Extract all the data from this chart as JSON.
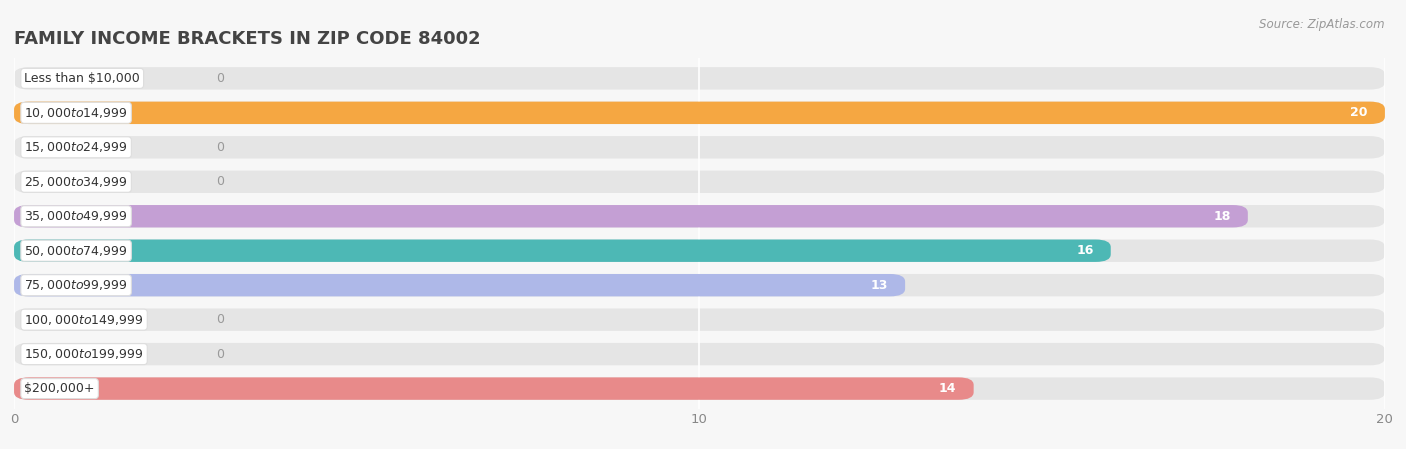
{
  "title": "FAMILY INCOME BRACKETS IN ZIP CODE 84002",
  "source_text": "Source: ZipAtlas.com",
  "categories": [
    "Less than $10,000",
    "$10,000 to $14,999",
    "$15,000 to $24,999",
    "$25,000 to $34,999",
    "$35,000 to $49,999",
    "$50,000 to $74,999",
    "$75,000 to $99,999",
    "$100,000 to $149,999",
    "$150,000 to $199,999",
    "$200,000+"
  ],
  "values": [
    0,
    20,
    0,
    0,
    18,
    16,
    13,
    0,
    0,
    14
  ],
  "bar_colors": [
    "#f7a8ba",
    "#f5a742",
    "#f7a8ba",
    "#adc6ea",
    "#c49fd4",
    "#4db8b5",
    "#aeb8e8",
    "#f7a8ba",
    "#f5c88a",
    "#e88a8a"
  ],
  "xlim": [
    0,
    20
  ],
  "xticks": [
    0,
    10,
    20
  ],
  "background_color": "#f7f7f7",
  "bar_background_color": "#e5e5e5",
  "title_fontsize": 13,
  "bar_height": 0.65,
  "label_fontsize": 9,
  "value_fontsize": 9
}
